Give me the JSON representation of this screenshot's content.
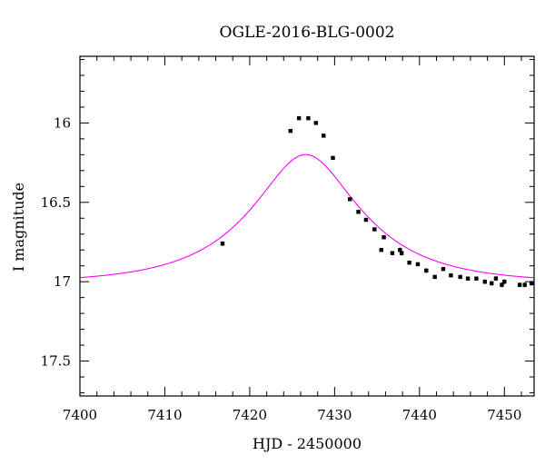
{
  "chart_data": {
    "type": "scatter",
    "title": "OGLE-2016-BLG-0002",
    "xlabel": "HJD - 2450000",
    "ylabel": "I magnitude",
    "xlim": [
      7400,
      7453.5
    ],
    "ylim": [
      17.72,
      15.58
    ],
    "y_inverted": true,
    "x_major_ticks": [
      7400,
      7410,
      7420,
      7430,
      7440,
      7450
    ],
    "x_tick_labels": [
      "7400",
      "7410",
      "7420",
      "7430",
      "7440",
      "7450"
    ],
    "y_major_ticks": [
      16,
      16.5,
      17,
      17.5
    ],
    "y_tick_labels": [
      "16",
      "16.5",
      "17",
      "17.5"
    ],
    "grid": false,
    "legend": "none",
    "colors": {
      "model": "#ff00ff",
      "points": "#000000"
    },
    "model_curve": {
      "type": "paczynski",
      "t0": 7426.6,
      "tE": 12.0,
      "u0": 0.45,
      "baseline_mag": 17.01,
      "blend_fraction": 0.8
    },
    "series": [
      {
        "x": [
          7416.8,
          7424.8,
          7425.8,
          7426.9,
          7427.8,
          7428.7,
          7429.8,
          7431.8,
          7432.8,
          7433.7,
          7434.7,
          7435.5,
          7435.8,
          7436.8,
          7437.7,
          7437.9,
          7438.8,
          7439.8,
          7440.8,
          7441.8,
          7442.8,
          7443.7,
          7444.8,
          7445.7,
          7446.7,
          7447.7,
          7448.5,
          7449.0,
          7449.7,
          7450.0,
          7451.8,
          7452.4,
          7453.2
        ],
        "y": [
          16.76,
          16.05,
          15.97,
          15.97,
          16.0,
          16.08,
          16.22,
          16.48,
          16.56,
          16.61,
          16.67,
          16.8,
          16.72,
          16.82,
          16.8,
          16.82,
          16.88,
          16.89,
          16.93,
          16.97,
          16.92,
          16.96,
          16.97,
          16.98,
          16.98,
          17.0,
          17.01,
          16.98,
          17.02,
          17.0,
          17.02,
          17.02,
          17.01
        ],
        "yerr": [
          0.015,
          0.008,
          0.008,
          0.008,
          0.008,
          0.008,
          0.01,
          0.01,
          0.01,
          0.01,
          0.01,
          0.012,
          0.012,
          0.012,
          0.015,
          0.015,
          0.012,
          0.012,
          0.015,
          0.012,
          0.012,
          0.012,
          0.012,
          0.012,
          0.012,
          0.015,
          0.015,
          0.015,
          0.015,
          0.015,
          0.015,
          0.015,
          0.015
        ]
      }
    ]
  }
}
